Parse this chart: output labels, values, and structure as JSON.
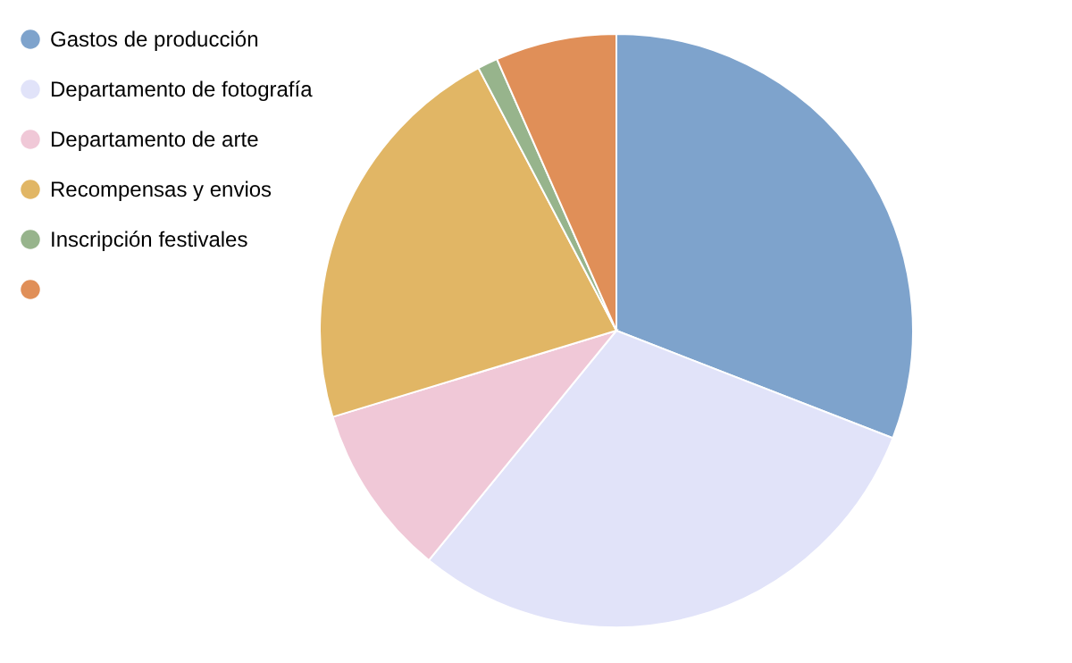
{
  "chart_data": {
    "type": "pie",
    "categories": [
      "Gastos de producción",
      "Departamento de fotografía",
      "Departamento de arte",
      "Recompensas y envios",
      "Inscripción festivales",
      null
    ],
    "values": [
      30.9,
      30.0,
      9.4,
      22.0,
      1.1,
      6.6
    ],
    "colors": [
      "#7ea3cc",
      "#e1e3f9",
      "#f0c8d7",
      "#e1b665",
      "#97b48c",
      "#e08f58"
    ],
    "legend": "top left"
  }
}
